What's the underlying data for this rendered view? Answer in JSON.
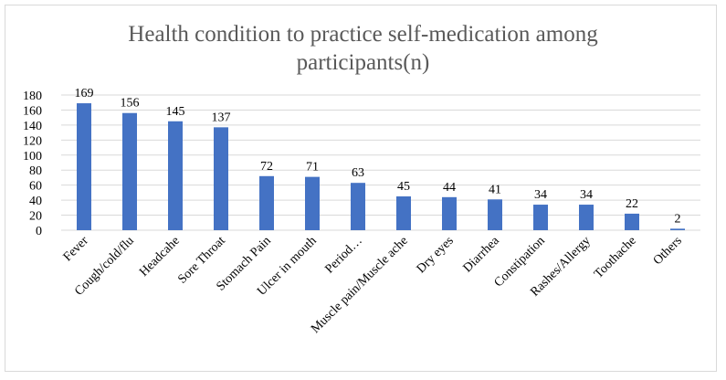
{
  "chart_data": {
    "type": "bar",
    "title_lines": [
      "Health condition to practice self-medication among",
      "participants(n)"
    ],
    "categories": [
      "Fever",
      "Cough/cold/flu",
      "Headcahe",
      "Sore Throat",
      "Stomach Pain",
      "Ulcer in mouth",
      "Period…",
      "Muscle pain/Muscle ache",
      "Dry eyes",
      "Diarrhea",
      "Constipation",
      "Rashes/Allergy",
      "Toothache",
      "Others"
    ],
    "values": [
      169,
      156,
      145,
      137,
      72,
      71,
      63,
      45,
      44,
      41,
      34,
      34,
      22,
      2
    ],
    "ylim": [
      0,
      180
    ],
    "yticks": [
      0,
      20,
      40,
      60,
      80,
      100,
      120,
      140,
      160,
      180
    ],
    "grid": true,
    "legend": "none",
    "data_labels": true,
    "colors": {
      "bar": "#4472c4",
      "grid": "#d9d9d9",
      "axis": "#d9d9d9",
      "title": "#595959"
    }
  }
}
